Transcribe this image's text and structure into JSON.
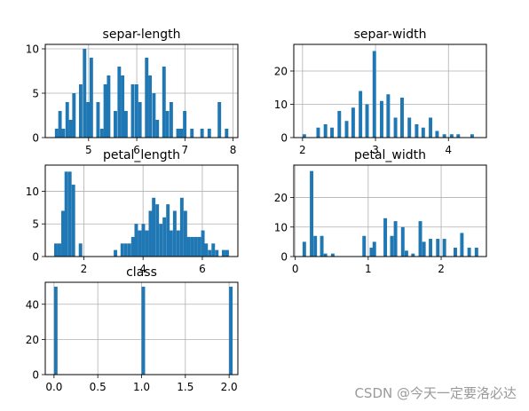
{
  "watermark": "CSDN @今天一定要洛必达",
  "colors": {
    "bar": "#1f77b4",
    "grid": "#b0b0b0",
    "axis": "#000000"
  },
  "chart_data": [
    {
      "type": "bar",
      "title": "separ-length",
      "grid": true,
      "xlim": [
        4.1,
        8.1
      ],
      "ylim": [
        0,
        10.5
      ],
      "xticks": [
        5,
        6,
        7,
        8
      ],
      "yticks": [
        0,
        5,
        10
      ],
      "bin_width": 0.072,
      "x": [
        4.3,
        4.37,
        4.44,
        4.52,
        4.59,
        4.66,
        4.73,
        4.8,
        4.88,
        4.95,
        5.02,
        5.09,
        5.16,
        5.24,
        5.31,
        5.38,
        5.45,
        5.52,
        5.6,
        5.67,
        5.74,
        5.81,
        5.88,
        5.96,
        6.03,
        6.1,
        6.17,
        6.24,
        6.32,
        6.39,
        6.46,
        6.53,
        6.6,
        6.68,
        6.75,
        6.82,
        6.89,
        6.96,
        7.04,
        7.11,
        7.18,
        7.25,
        7.32,
        7.4,
        7.47,
        7.54,
        7.61,
        7.68,
        7.76,
        7.83
      ],
      "values": [
        1,
        3,
        1,
        4,
        2,
        5,
        0,
        6,
        10,
        4,
        9,
        0,
        4,
        1,
        6,
        7,
        0,
        3,
        8,
        7,
        3,
        0,
        6,
        6,
        4,
        0,
        9,
        7,
        5,
        2,
        0,
        8,
        3,
        4,
        0,
        1,
        1,
        3,
        0,
        1,
        0,
        0,
        1,
        0,
        1,
        0,
        0,
        4,
        0,
        1
      ]
    },
    {
      "type": "bar",
      "title": "separ-width",
      "grid": true,
      "xlim": [
        1.88,
        4.52
      ],
      "ylim": [
        0,
        28
      ],
      "xticks": [
        2,
        3,
        4
      ],
      "yticks": [
        0,
        10,
        20
      ],
      "bin_width": 0.048,
      "x": [
        2.0,
        2.05,
        2.1,
        2.14,
        2.19,
        2.24,
        2.29,
        2.34,
        2.38,
        2.43,
        2.48,
        2.53,
        2.58,
        2.62,
        2.67,
        2.72,
        2.77,
        2.82,
        2.86,
        2.91,
        2.96,
        3.01,
        3.06,
        3.1,
        3.15,
        3.2,
        3.25,
        3.3,
        3.34,
        3.39,
        3.44,
        3.49,
        3.54,
        3.58,
        3.63,
        3.68,
        3.73,
        3.78,
        3.82,
        3.87,
        3.92,
        3.97,
        4.02,
        4.06,
        4.11,
        4.16,
        4.21,
        4.26,
        4.3,
        4.35
      ],
      "values": [
        1,
        0,
        0,
        0,
        3,
        0,
        4,
        0,
        3,
        0,
        8,
        0,
        5,
        0,
        9,
        0,
        14,
        0,
        10,
        0,
        26,
        0,
        11,
        0,
        13,
        0,
        6,
        0,
        12,
        0,
        6,
        0,
        4,
        0,
        3,
        0,
        6,
        0,
        2,
        0,
        1,
        0,
        1,
        0,
        1,
        0,
        0,
        0,
        1,
        0
      ]
    },
    {
      "type": "bar",
      "title": "petal_length",
      "grid": true,
      "xlim": [
        0.7,
        7.2
      ],
      "ylim": [
        0,
        14
      ],
      "xticks": [
        2,
        4,
        6
      ],
      "yticks": [
        0,
        5,
        10
      ],
      "bin_width": 0.118,
      "x": [
        1.0,
        1.12,
        1.24,
        1.35,
        1.47,
        1.59,
        1.71,
        1.83,
        1.94,
        2.06,
        2.18,
        2.3,
        2.42,
        2.53,
        2.65,
        2.77,
        2.89,
        3.01,
        3.12,
        3.24,
        3.36,
        3.48,
        3.6,
        3.71,
        3.83,
        3.95,
        4.07,
        4.19,
        4.3,
        4.42,
        4.54,
        4.66,
        4.78,
        4.89,
        5.01,
        5.13,
        5.25,
        5.37,
        5.48,
        5.6,
        5.72,
        5.84,
        5.96,
        6.07,
        6.19,
        6.31,
        6.43,
        6.55,
        6.66,
        6.78
      ],
      "values": [
        2,
        2,
        7,
        13,
        13,
        11,
        0,
        2,
        0,
        0,
        0,
        0,
        0,
        0,
        0,
        0,
        0,
        1,
        0,
        2,
        2,
        2,
        3,
        5,
        4,
        5,
        4,
        7,
        9,
        8,
        5,
        6,
        8,
        4,
        7,
        4,
        9,
        7,
        3,
        3,
        3,
        3,
        4,
        2,
        1,
        2,
        1,
        0,
        1,
        1
      ]
    },
    {
      "type": "bar",
      "title": "petal_width",
      "grid": true,
      "xlim": [
        -0.02,
        2.62
      ],
      "ylim": [
        0,
        31
      ],
      "xticks": [
        0,
        1,
        2
      ],
      "yticks": [
        0,
        10,
        20
      ],
      "bin_width": 0.048,
      "x": [
        0.1,
        0.15,
        0.2,
        0.25,
        0.29,
        0.34,
        0.39,
        0.44,
        0.49,
        0.54,
        0.58,
        0.63,
        0.68,
        0.73,
        0.78,
        0.82,
        0.87,
        0.92,
        0.97,
        1.02,
        1.06,
        1.11,
        1.16,
        1.21,
        1.26,
        1.3,
        1.35,
        1.4,
        1.45,
        1.5,
        1.54,
        1.59,
        1.64,
        1.69,
        1.74,
        1.78,
        1.83,
        1.88,
        1.93,
        1.98,
        2.02,
        2.07,
        2.12,
        2.17,
        2.22,
        2.26,
        2.31,
        2.36,
        2.41,
        2.46
      ],
      "values": [
        5,
        0,
        29,
        7,
        0,
        7,
        1,
        0,
        1,
        0,
        0,
        0,
        0,
        0,
        0,
        0,
        0,
        7,
        0,
        3,
        5,
        0,
        0,
        13,
        0,
        7,
        12,
        0,
        10,
        2,
        0,
        1,
        0,
        12,
        5,
        0,
        6,
        0,
        6,
        0,
        6,
        0,
        0,
        3,
        0,
        8,
        0,
        3,
        0,
        3
      ]
    },
    {
      "type": "bar",
      "title": "class",
      "grid": true,
      "xlim": [
        -0.1,
        2.1
      ],
      "ylim": [
        0,
        52.5
      ],
      "xticks": [
        "0.0",
        "0.5",
        "1.0",
        "1.5",
        "2.0"
      ],
      "yticks": [
        0,
        20,
        40
      ],
      "bin_width": 0.04,
      "x": [
        0.0,
        1.0,
        2.0
      ],
      "values": [
        50,
        50,
        50
      ]
    }
  ]
}
